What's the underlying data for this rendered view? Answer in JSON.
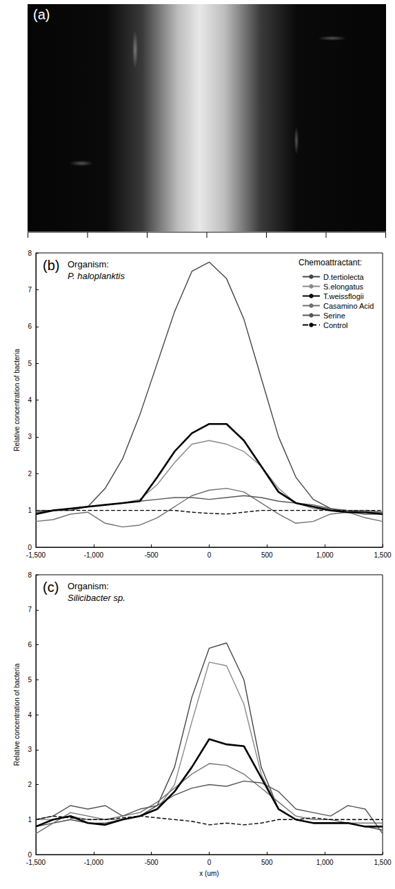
{
  "image_panel": {
    "label": "(a)"
  },
  "chart_data": [
    {
      "type": "line",
      "panel_label": "(b)",
      "annotations": [
        "Organism:",
        "P. haloplanktis"
      ],
      "legend_title": "Chemoattractant:",
      "legend": "upper right",
      "ylabel": "Relative concentration of bacteria",
      "xlim": [
        -1500,
        1500
      ],
      "xticks": [
        -1500,
        -1000,
        -500,
        0,
        500,
        1000,
        1500
      ],
      "ylim": [
        0,
        8
      ],
      "yticks": [
        0,
        1,
        2,
        3,
        4,
        5,
        6,
        7,
        8
      ],
      "grid": false,
      "x": [
        -1500,
        -1350,
        -1200,
        -1050,
        -900,
        -750,
        -600,
        -450,
        -300,
        -150,
        0,
        150,
        300,
        450,
        600,
        750,
        900,
        1050,
        1200,
        1350,
        1500
      ],
      "series": [
        {
          "name": "D.tertiolecta",
          "color": "#444444",
          "line_style": "solid",
          "values": [
            0.95,
            1.0,
            1.0,
            1.1,
            1.6,
            2.4,
            3.6,
            5.0,
            6.4,
            7.5,
            7.75,
            7.3,
            6.2,
            4.6,
            3.0,
            1.9,
            1.3,
            1.05,
            0.95,
            0.9,
            0.9
          ]
        },
        {
          "name": "S.elongatus",
          "color": "#8a8a8a",
          "line_style": "solid",
          "values": [
            1.0,
            1.0,
            1.05,
            1.1,
            1.15,
            1.2,
            1.3,
            1.7,
            2.3,
            2.8,
            2.9,
            2.8,
            2.6,
            2.2,
            1.6,
            1.2,
            1.05,
            1.0,
            1.0,
            0.95,
            0.95
          ]
        },
        {
          "name": "T.weissflogii",
          "color": "#000000",
          "line_style": "bold",
          "values": [
            0.9,
            1.0,
            1.05,
            1.1,
            1.15,
            1.2,
            1.25,
            1.9,
            2.6,
            3.1,
            3.35,
            3.35,
            2.9,
            2.2,
            1.5,
            1.2,
            1.1,
            1.0,
            0.95,
            0.95,
            0.9
          ]
        },
        {
          "name": "Casamino Acid",
          "color": "#707070",
          "line_style": "solid",
          "values": [
            0.7,
            0.75,
            0.9,
            0.95,
            0.65,
            0.55,
            0.6,
            0.8,
            1.1,
            1.4,
            1.55,
            1.6,
            1.5,
            1.2,
            0.9,
            0.65,
            0.7,
            0.9,
            0.95,
            0.8,
            0.7
          ]
        },
        {
          "name": "Serine",
          "color": "#555555",
          "line_style": "solid",
          "values": [
            1.0,
            1.0,
            1.05,
            1.1,
            1.15,
            1.2,
            1.25,
            1.3,
            1.35,
            1.35,
            1.3,
            1.35,
            1.4,
            1.35,
            1.25,
            1.2,
            1.15,
            1.05,
            1.0,
            1.0,
            0.95
          ]
        },
        {
          "name": "Control",
          "color": "#000000",
          "line_style": "dashed",
          "values": [
            1.0,
            1.0,
            1.0,
            1.0,
            1.0,
            1.0,
            1.0,
            1.0,
            1.0,
            0.95,
            0.92,
            0.9,
            0.95,
            1.0,
            1.0,
            1.0,
            1.0,
            1.0,
            1.0,
            1.0,
            1.0
          ]
        }
      ]
    },
    {
      "type": "line",
      "panel_label": "(c)",
      "annotations": [
        "Organism:",
        "Silicibacter sp."
      ],
      "legend": false,
      "xlabel": "x (um)",
      "ylabel": "Relative concentration of bacteria",
      "xlim": [
        -1500,
        1500
      ],
      "xticks": [
        -1500,
        -1000,
        -500,
        0,
        500,
        1000,
        1500
      ],
      "ylim": [
        0,
        8
      ],
      "yticks": [
        0,
        1,
        2,
        3,
        4,
        5,
        6,
        7,
        8
      ],
      "grid": false,
      "x": [
        -1500,
        -1350,
        -1200,
        -1050,
        -900,
        -750,
        -600,
        -450,
        -300,
        -150,
        0,
        150,
        300,
        450,
        600,
        750,
        900,
        1050,
        1200,
        1350,
        1500
      ],
      "series": [
        {
          "color": "#444444",
          "line_style": "solid",
          "values": [
            0.8,
            0.9,
            1.0,
            0.9,
            0.9,
            1.0,
            1.1,
            1.4,
            2.5,
            4.5,
            5.9,
            6.05,
            5.0,
            2.5,
            1.3,
            1.0,
            0.9,
            0.9,
            0.9,
            0.8,
            0.7
          ]
        },
        {
          "color": "#8a8a8a",
          "line_style": "solid",
          "values": [
            1.0,
            1.0,
            1.1,
            1.0,
            1.0,
            1.0,
            1.1,
            1.3,
            2.0,
            3.8,
            5.5,
            5.4,
            4.3,
            2.3,
            1.3,
            1.0,
            0.9,
            0.9,
            0.9,
            0.9,
            0.9
          ]
        },
        {
          "color": "#000000",
          "line_style": "bold",
          "values": [
            0.8,
            1.0,
            1.1,
            0.9,
            0.85,
            1.0,
            1.1,
            1.3,
            1.8,
            2.5,
            3.3,
            3.15,
            3.1,
            2.2,
            1.3,
            1.0,
            0.9,
            0.9,
            0.9,
            0.8,
            0.8
          ]
        },
        {
          "color": "#707070",
          "line_style": "solid",
          "values": [
            0.6,
            0.9,
            1.2,
            1.1,
            1.0,
            1.1,
            1.2,
            1.5,
            1.9,
            2.3,
            2.6,
            2.55,
            2.3,
            1.9,
            1.5,
            1.1,
            1.0,
            1.0,
            0.9,
            0.9,
            0.9
          ]
        },
        {
          "color": "#555555",
          "line_style": "solid",
          "values": [
            1.0,
            1.1,
            1.4,
            1.3,
            1.4,
            1.1,
            1.3,
            1.4,
            1.7,
            1.9,
            2.0,
            1.95,
            2.1,
            2.05,
            1.8,
            1.3,
            1.2,
            1.1,
            1.4,
            1.3,
            0.6
          ]
        },
        {
          "color": "#000000",
          "line_style": "dashed",
          "values": [
            1.0,
            1.1,
            1.05,
            1.0,
            1.0,
            1.05,
            1.1,
            1.05,
            1.0,
            0.95,
            0.85,
            0.9,
            0.85,
            0.9,
            1.0,
            1.0,
            1.05,
            1.0,
            1.0,
            1.0,
            1.0
          ]
        }
      ]
    }
  ]
}
